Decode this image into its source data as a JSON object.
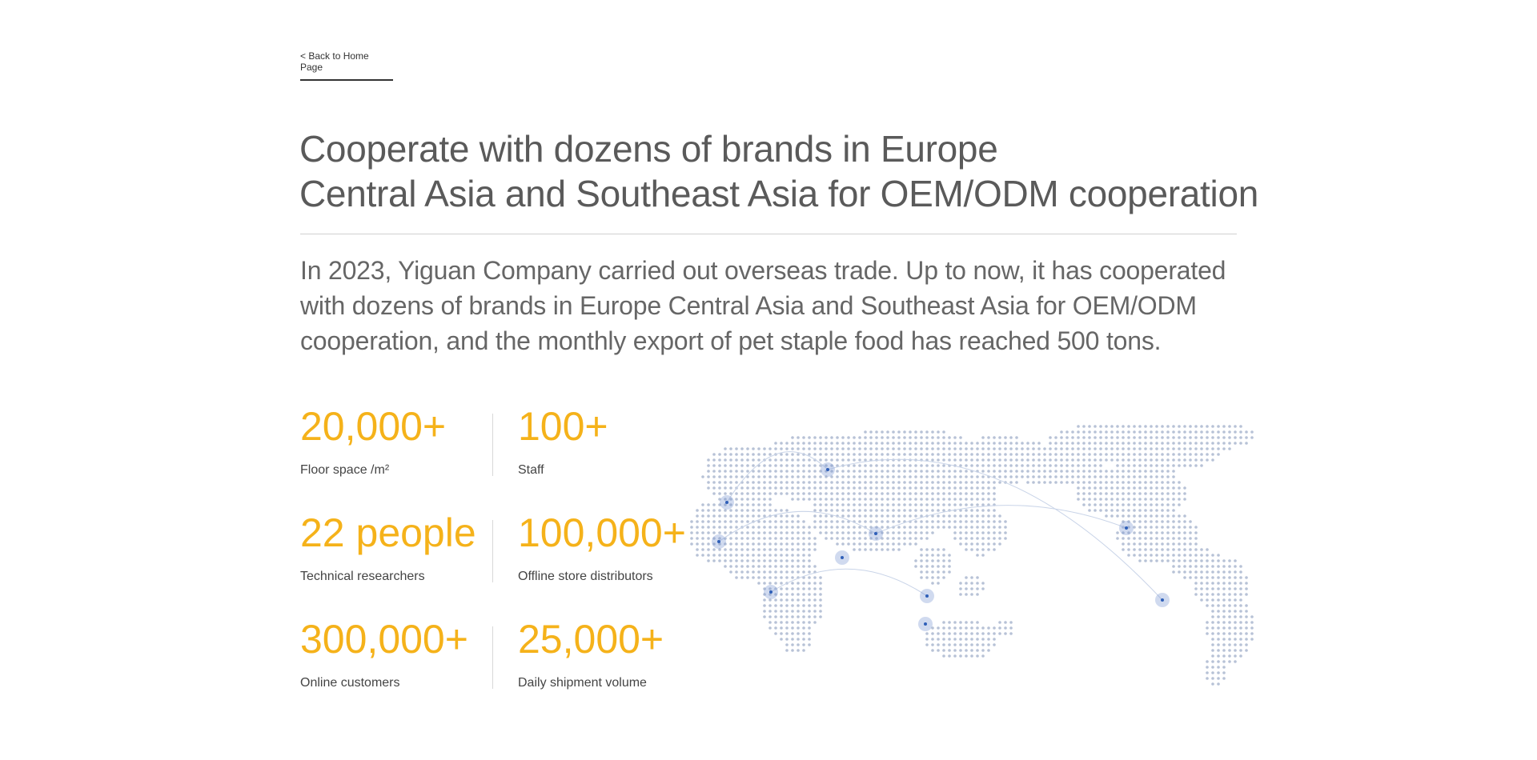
{
  "nav": {
    "back_label": "< Back to Home Page"
  },
  "header": {
    "title_line1": "Cooperate with dozens of brands in Europe",
    "title_line2": "Central Asia and Southeast Asia for OEM/ODM cooperation"
  },
  "description": "In 2023, Yiguan Company carried out overseas trade. Up to now, it has cooperated with dozens of brands in Europe Central Asia and Southeast Asia for OEM/ODM cooperation, and the monthly export of pet staple food has reached 500 tons.",
  "stats": [
    {
      "value": "20,000+",
      "label": "Floor space /m²"
    },
    {
      "value": "100+",
      "label": "Staff"
    },
    {
      "value": "22 people",
      "label": "Technical researchers"
    },
    {
      "value": "100,000+",
      "label": "Offline store distributors"
    },
    {
      "value": "300,000+",
      "label": "Online customers"
    },
    {
      "value": "25,000+",
      "label": "Daily shipment volume"
    }
  ],
  "colors": {
    "accent": "#f5b21a",
    "map_dot": "#b7c2d6",
    "map_highlight": "#2f5fb8"
  }
}
